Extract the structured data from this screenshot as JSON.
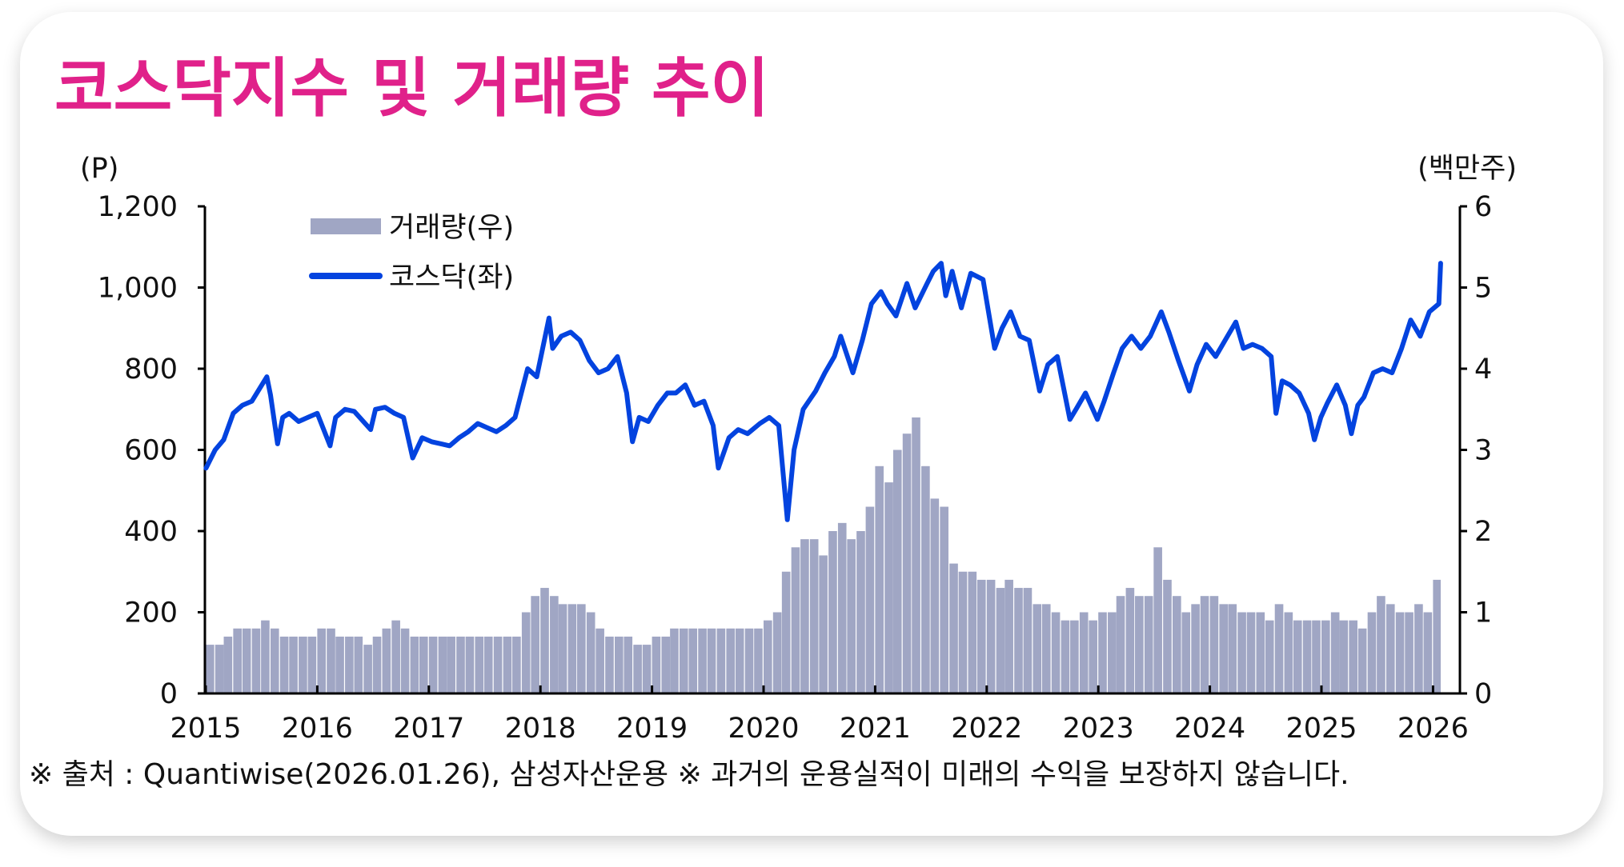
{
  "colors": {
    "title": "#e0218a",
    "line": "#0343df",
    "bars": "#a0a6c4",
    "axis": "#000000"
  },
  "chart_data": {
    "type": "bar+line",
    "title": "코스닥지수 및 거래량 추이",
    "ylabel_left": "(P)",
    "ylabel_right": "(백만주)",
    "ylim_left": [
      0,
      1200
    ],
    "ylim_right": [
      0,
      6
    ],
    "yticks_left": [
      "0",
      "200",
      "400",
      "600",
      "800",
      "1,000",
      "1,200"
    ],
    "yticks_right": [
      "0",
      "1",
      "2",
      "3",
      "4",
      "5",
      "6"
    ],
    "xticks": [
      "2015",
      "2016",
      "2017",
      "2018",
      "2019",
      "2020",
      "2021",
      "2022",
      "2023",
      "2024",
      "2025",
      "2026"
    ],
    "grid": false,
    "legend_position": "top-left",
    "series": [
      {
        "name": "거래량(우)",
        "type": "bar",
        "axis": "right",
        "x_start": "2015-01",
        "frequency": "monthly",
        "values": [
          0.6,
          0.6,
          0.7,
          0.8,
          0.8,
          0.8,
          0.9,
          0.8,
          0.7,
          0.7,
          0.7,
          0.7,
          0.8,
          0.8,
          0.7,
          0.7,
          0.7,
          0.6,
          0.7,
          0.8,
          0.9,
          0.8,
          0.7,
          0.7,
          0.7,
          0.7,
          0.7,
          0.7,
          0.7,
          0.7,
          0.7,
          0.7,
          0.7,
          0.7,
          1.0,
          1.2,
          1.3,
          1.2,
          1.1,
          1.1,
          1.1,
          1.0,
          0.8,
          0.7,
          0.7,
          0.7,
          0.6,
          0.6,
          0.7,
          0.7,
          0.8,
          0.8,
          0.8,
          0.8,
          0.8,
          0.8,
          0.8,
          0.8,
          0.8,
          0.8,
          0.9,
          1.0,
          1.5,
          1.8,
          1.9,
          1.9,
          1.7,
          2.0,
          2.1,
          1.9,
          2.0,
          2.3,
          2.8,
          2.6,
          3.0,
          3.2,
          3.4,
          2.8,
          2.4,
          2.3,
          1.6,
          1.5,
          1.5,
          1.4,
          1.4,
          1.3,
          1.4,
          1.3,
          1.3,
          1.1,
          1.1,
          1.0,
          0.9,
          0.9,
          1.0,
          0.9,
          1.0,
          1.0,
          1.2,
          1.3,
          1.2,
          1.2,
          1.8,
          1.4,
          1.2,
          1.0,
          1.1,
          1.2,
          1.2,
          1.1,
          1.1,
          1.0,
          1.0,
          1.0,
          0.9,
          1.1,
          1.0,
          0.9,
          0.9,
          0.9,
          0.9,
          1.0,
          0.9,
          0.9,
          0.8,
          1.0,
          1.2,
          1.1,
          1.0,
          1.0,
          1.1,
          1.0,
          1.4
        ]
      },
      {
        "name": "코스닥(좌)",
        "type": "line",
        "axis": "left",
        "points": [
          [
            "2015-01-02",
            555
          ],
          [
            "2015-02-01",
            600
          ],
          [
            "2015-03-01",
            625
          ],
          [
            "2015-04-01",
            690
          ],
          [
            "2015-05-01",
            710
          ],
          [
            "2015-06-01",
            720
          ],
          [
            "2015-07-20",
            780
          ],
          [
            "2015-08-01",
            735
          ],
          [
            "2015-08-24",
            615
          ],
          [
            "2015-09-10",
            680
          ],
          [
            "2015-10-01",
            690
          ],
          [
            "2015-11-01",
            670
          ],
          [
            "2015-12-01",
            680
          ],
          [
            "2016-01-01",
            690
          ],
          [
            "2016-02-12",
            610
          ],
          [
            "2016-03-01",
            680
          ],
          [
            "2016-04-01",
            700
          ],
          [
            "2016-05-01",
            695
          ],
          [
            "2016-06-24",
            650
          ],
          [
            "2016-07-10",
            700
          ],
          [
            "2016-08-10",
            705
          ],
          [
            "2016-09-10",
            690
          ],
          [
            "2016-10-10",
            680
          ],
          [
            "2016-11-09",
            580
          ],
          [
            "2016-12-10",
            630
          ],
          [
            "2017-01-10",
            620
          ],
          [
            "2017-02-10",
            615
          ],
          [
            "2017-03-10",
            610
          ],
          [
            "2017-04-10",
            630
          ],
          [
            "2017-05-10",
            645
          ],
          [
            "2017-06-10",
            665
          ],
          [
            "2017-07-10",
            655
          ],
          [
            "2017-08-10",
            645
          ],
          [
            "2017-09-10",
            660
          ],
          [
            "2017-10-10",
            680
          ],
          [
            "2017-11-20",
            800
          ],
          [
            "2017-12-20",
            780
          ],
          [
            "2018-01-29",
            925
          ],
          [
            "2018-02-10",
            850
          ],
          [
            "2018-03-10",
            880
          ],
          [
            "2018-04-10",
            890
          ],
          [
            "2018-05-10",
            870
          ],
          [
            "2018-06-10",
            820
          ],
          [
            "2018-07-10",
            790
          ],
          [
            "2018-08-10",
            800
          ],
          [
            "2018-09-10",
            830
          ],
          [
            "2018-10-10",
            740
          ],
          [
            "2018-10-29",
            620
          ],
          [
            "2018-11-20",
            680
          ],
          [
            "2018-12-20",
            670
          ],
          [
            "2019-01-20",
            710
          ],
          [
            "2019-02-20",
            740
          ],
          [
            "2019-03-20",
            740
          ],
          [
            "2019-04-20",
            760
          ],
          [
            "2019-05-20",
            710
          ],
          [
            "2019-06-20",
            720
          ],
          [
            "2019-07-20",
            660
          ],
          [
            "2019-08-06",
            555
          ],
          [
            "2019-09-10",
            630
          ],
          [
            "2019-10-10",
            650
          ],
          [
            "2019-11-10",
            640
          ],
          [
            "2019-12-20",
            665
          ],
          [
            "2020-01-20",
            680
          ],
          [
            "2020-02-20",
            660
          ],
          [
            "2020-03-19",
            428
          ],
          [
            "2020-04-10",
            600
          ],
          [
            "2020-05-10",
            700
          ],
          [
            "2020-06-20",
            745
          ],
          [
            "2020-07-20",
            790
          ],
          [
            "2020-08-20",
            830
          ],
          [
            "2020-09-10",
            880
          ],
          [
            "2020-10-20",
            790
          ],
          [
            "2020-11-20",
            870
          ],
          [
            "2020-12-20",
            960
          ],
          [
            "2021-01-20",
            990
          ],
          [
            "2021-02-10",
            960
          ],
          [
            "2021-03-10",
            930
          ],
          [
            "2021-04-15",
            1010
          ],
          [
            "2021-05-12",
            950
          ],
          [
            "2021-06-20",
            1010
          ],
          [
            "2021-07-10",
            1040
          ],
          [
            "2021-08-05",
            1060
          ],
          [
            "2021-08-20",
            980
          ],
          [
            "2021-09-10",
            1040
          ],
          [
            "2021-10-10",
            950
          ],
          [
            "2021-11-10",
            1035
          ],
          [
            "2021-12-20",
            1020
          ],
          [
            "2022-01-27",
            850
          ],
          [
            "2022-02-20",
            900
          ],
          [
            "2022-03-20",
            940
          ],
          [
            "2022-04-20",
            880
          ],
          [
            "2022-05-20",
            870
          ],
          [
            "2022-06-23",
            745
          ],
          [
            "2022-07-20",
            810
          ],
          [
            "2022-08-20",
            830
          ],
          [
            "2022-09-30",
            675
          ],
          [
            "2022-10-20",
            700
          ],
          [
            "2022-11-20",
            740
          ],
          [
            "2022-12-29",
            675
          ],
          [
            "2023-01-20",
            720
          ],
          [
            "2023-02-20",
            790
          ],
          [
            "2023-03-20",
            850
          ],
          [
            "2023-04-20",
            880
          ],
          [
            "2023-05-20",
            850
          ],
          [
            "2023-06-20",
            880
          ],
          [
            "2023-07-26",
            940
          ],
          [
            "2023-08-20",
            890
          ],
          [
            "2023-09-20",
            820
          ],
          [
            "2023-10-26",
            745
          ],
          [
            "2023-11-20",
            810
          ],
          [
            "2023-12-20",
            860
          ],
          [
            "2024-01-20",
            830
          ],
          [
            "2024-02-20",
            870
          ],
          [
            "2024-03-26",
            915
          ],
          [
            "2024-04-20",
            850
          ],
          [
            "2024-05-20",
            860
          ],
          [
            "2024-06-20",
            850
          ],
          [
            "2024-07-20",
            830
          ],
          [
            "2024-08-05",
            690
          ],
          [
            "2024-08-25",
            770
          ],
          [
            "2024-09-20",
            760
          ],
          [
            "2024-10-20",
            740
          ],
          [
            "2024-11-20",
            690
          ],
          [
            "2024-12-09",
            625
          ],
          [
            "2024-12-30",
            680
          ],
          [
            "2025-01-20",
            715
          ],
          [
            "2025-02-20",
            760
          ],
          [
            "2025-03-20",
            710
          ],
          [
            "2025-04-09",
            640
          ],
          [
            "2025-04-30",
            710
          ],
          [
            "2025-05-20",
            730
          ],
          [
            "2025-06-20",
            790
          ],
          [
            "2025-07-20",
            800
          ],
          [
            "2025-08-20",
            790
          ],
          [
            "2025-09-20",
            850
          ],
          [
            "2025-10-20",
            920
          ],
          [
            "2025-11-20",
            880
          ],
          [
            "2025-12-20",
            940
          ],
          [
            "2026-01-20",
            960
          ],
          [
            "2026-01-26",
            1060
          ]
        ]
      }
    ]
  },
  "footer": "※ 출처 : Quantiwise(2026.01.26), 삼성자산운용 ※ 과거의 운용실적이 미래의 수익을 보장하지 않습니다."
}
